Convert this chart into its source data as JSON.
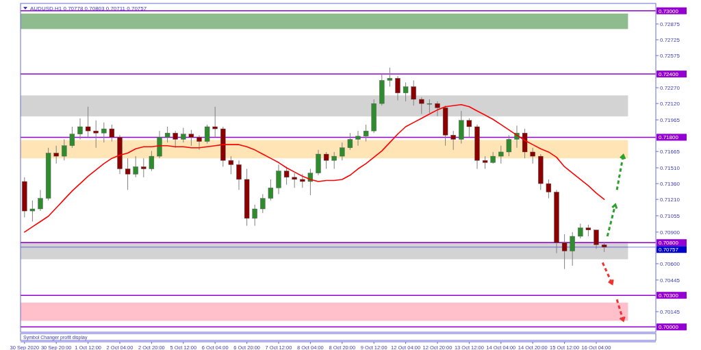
{
  "chart_data": {
    "type": "candlestick",
    "title": "AUDUSD.H1 0.70778 0.70803 0.70711 0.70757",
    "categories": [
      "30 Sep 2020",
      null,
      null,
      null,
      "30 Sep 20:00",
      null,
      null,
      null,
      "1 Oct 12:00",
      null,
      null,
      null,
      "2 Oct 04:00",
      null,
      null,
      null,
      "2 Oct 20:00",
      null,
      null,
      null,
      "5 Oct 12:00",
      null,
      null,
      null,
      "6 Oct 04:00",
      null,
      null,
      null,
      "6 Oct 20:00",
      null,
      null,
      null,
      "7 Oct 12:00",
      null,
      null,
      null,
      "8 Oct 04:00",
      null,
      null,
      null,
      "8 Oct 20:00",
      null,
      null,
      null,
      "9 Oct 12:00",
      null,
      null,
      null,
      "12 Oct 04:00",
      null,
      null,
      null,
      "12 Oct 20:00",
      null,
      null,
      null,
      "13 Oct 12:00",
      null,
      null,
      null,
      "14 Oct 04:00",
      null,
      null,
      null,
      "14 Oct 20:00",
      null,
      null,
      null,
      "15 Oct 12:00",
      null,
      null,
      null,
      "16 Oct 04:00",
      null
    ],
    "ohlc": [
      [
        0.7138,
        0.7142,
        0.7104,
        0.711
      ],
      [
        0.711,
        0.712,
        0.71,
        0.7112
      ],
      [
        0.7112,
        0.713,
        0.711,
        0.7122
      ],
      [
        0.7122,
        0.717,
        0.712,
        0.7165
      ],
      [
        0.7165,
        0.7172,
        0.7155,
        0.7162
      ],
      [
        0.7162,
        0.7178,
        0.7158,
        0.7172
      ],
      [
        0.7172,
        0.719,
        0.717,
        0.7183
      ],
      [
        0.7183,
        0.7198,
        0.7178,
        0.719
      ],
      [
        0.719,
        0.7209,
        0.718,
        0.7186
      ],
      [
        0.7186,
        0.7196,
        0.717,
        0.7184
      ],
      [
        0.7184,
        0.7194,
        0.7175,
        0.7188
      ],
      [
        0.7188,
        0.7192,
        0.7176,
        0.718
      ],
      [
        0.718,
        0.7182,
        0.7145,
        0.715
      ],
      [
        0.715,
        0.716,
        0.713,
        0.7145
      ],
      [
        0.7145,
        0.7162,
        0.7142,
        0.7152
      ],
      [
        0.7152,
        0.716,
        0.7142,
        0.715
      ],
      [
        0.715,
        0.7167,
        0.7148,
        0.7162
      ],
      [
        0.7162,
        0.7186,
        0.716,
        0.718
      ],
      [
        0.718,
        0.719,
        0.7175,
        0.7184
      ],
      [
        0.7184,
        0.7186,
        0.717,
        0.7178
      ],
      [
        0.7178,
        0.7189,
        0.7175,
        0.7183
      ],
      [
        0.7183,
        0.7187,
        0.7172,
        0.718
      ],
      [
        0.718,
        0.7182,
        0.7168,
        0.7176
      ],
      [
        0.7176,
        0.7192,
        0.7174,
        0.719
      ],
      [
        0.719,
        0.7209,
        0.718,
        0.7188
      ],
      [
        0.7188,
        0.719,
        0.7152,
        0.7158
      ],
      [
        0.7158,
        0.7162,
        0.7145,
        0.7154
      ],
      [
        0.7154,
        0.7158,
        0.713,
        0.714
      ],
      [
        0.714,
        0.715,
        0.7096,
        0.7103
      ],
      [
        0.7103,
        0.7116,
        0.7096,
        0.7112
      ],
      [
        0.7112,
        0.7126,
        0.7108,
        0.7122
      ],
      [
        0.7122,
        0.714,
        0.712,
        0.7132
      ],
      [
        0.7132,
        0.7154,
        0.7126,
        0.7148
      ],
      [
        0.7148,
        0.7152,
        0.7135,
        0.7142
      ],
      [
        0.7142,
        0.7146,
        0.7132,
        0.714
      ],
      [
        0.714,
        0.7145,
        0.7132,
        0.7138
      ],
      [
        0.7138,
        0.715,
        0.7125,
        0.7146
      ],
      [
        0.7146,
        0.7168,
        0.7144,
        0.7164
      ],
      [
        0.7164,
        0.7166,
        0.715,
        0.7158
      ],
      [
        0.7158,
        0.7166,
        0.715,
        0.7162
      ],
      [
        0.7162,
        0.7175,
        0.7158,
        0.717
      ],
      [
        0.717,
        0.7184,
        0.7168,
        0.7178
      ],
      [
        0.7178,
        0.7186,
        0.7172,
        0.7181
      ],
      [
        0.7181,
        0.7192,
        0.7176,
        0.7186
      ],
      [
        0.7186,
        0.7216,
        0.7184,
        0.7212
      ],
      [
        0.7212,
        0.724,
        0.721,
        0.7234
      ],
      [
        0.7234,
        0.7246,
        0.7228,
        0.7236
      ],
      [
        0.7236,
        0.7238,
        0.7215,
        0.7222
      ],
      [
        0.7222,
        0.7232,
        0.7214,
        0.7228
      ],
      [
        0.7228,
        0.7234,
        0.721,
        0.7216
      ],
      [
        0.7216,
        0.7218,
        0.7202,
        0.7212
      ],
      [
        0.7212,
        0.7216,
        0.7203,
        0.7212
      ],
      [
        0.7212,
        0.7214,
        0.72,
        0.7208
      ],
      [
        0.7208,
        0.721,
        0.7172,
        0.7182
      ],
      [
        0.7182,
        0.7186,
        0.7168,
        0.7178
      ],
      [
        0.7178,
        0.7205,
        0.7174,
        0.7196
      ],
      [
        0.7196,
        0.7198,
        0.718,
        0.719
      ],
      [
        0.719,
        0.7192,
        0.715,
        0.7158
      ],
      [
        0.7158,
        0.7162,
        0.715,
        0.7156
      ],
      [
        0.7156,
        0.7166,
        0.7155,
        0.7162
      ],
      [
        0.7162,
        0.7172,
        0.7155,
        0.7166
      ],
      [
        0.7166,
        0.7182,
        0.7162,
        0.7178
      ],
      [
        0.7178,
        0.7191,
        0.717,
        0.7184
      ],
      [
        0.7184,
        0.7188,
        0.716,
        0.7166
      ],
      [
        0.7166,
        0.717,
        0.7155,
        0.7162
      ],
      [
        0.7162,
        0.7164,
        0.713,
        0.7136
      ],
      [
        0.7136,
        0.714,
        0.7122,
        0.7128
      ],
      [
        0.7128,
        0.713,
        0.707,
        0.708
      ],
      [
        0.708,
        0.7088,
        0.7055,
        0.7072
      ],
      [
        0.7072,
        0.709,
        0.7058,
        0.7086
      ],
      [
        0.7086,
        0.7098,
        0.7084,
        0.7094
      ],
      [
        0.7094,
        0.7097,
        0.7086,
        0.7092
      ],
      [
        0.7092,
        0.7092,
        0.7074,
        0.7078
      ],
      [
        0.7078,
        0.70803,
        0.70711,
        0.70757
      ]
    ],
    "colors": [
      "#8b0000",
      "#2e8b2e",
      "#2e8b2e",
      "#2e8b2e",
      "#8b0000",
      "#2e8b2e",
      "#2e8b2e",
      "#2e8b2e",
      "#8b0000",
      "#8b0000",
      "#2e8b2e",
      "#8b0000",
      "#8b0000",
      "#8b0000",
      "#2e8b2e",
      "#8b0000",
      "#2e8b2e",
      "#2e8b2e",
      "#2e8b2e",
      "#8b0000",
      "#2e8b2e",
      "#8b0000",
      "#8b0000",
      "#2e8b2e",
      "#8b0000",
      "#8b0000",
      "#8b0000",
      "#8b0000",
      "#8b0000",
      "#2e8b2e",
      "#2e8b2e",
      "#2e8b2e",
      "#2e8b2e",
      "#8b0000",
      "#8b0000",
      "#8b0000",
      "#2e8b2e",
      "#2e8b2e",
      "#8b0000",
      "#2e8b2e",
      "#2e8b2e",
      "#2e8b2e",
      "#2e8b2e",
      "#2e8b2e",
      "#2e8b2e",
      "#2e8b2e",
      "#2e8b2e",
      "#8b0000",
      "#2e8b2e",
      "#8b0000",
      "#8b0000",
      "#2e8b2e",
      "#8b0000",
      "#8b0000",
      "#8b0000",
      "#2e8b2e",
      "#8b0000",
      "#8b0000",
      "#8b0000",
      "#2e8b2e",
      "#2e8b2e",
      "#2e8b2e",
      "#2e8b2e",
      "#8b0000",
      "#8b0000",
      "#8b0000",
      "#8b0000",
      "#8b0000",
      "#8b0000",
      "#2e8b2e",
      "#2e8b2e",
      "#8b0000",
      "#8b0000",
      "#8b0000"
    ],
    "series": [
      {
        "type": "line",
        "color": "#ff0000",
        "values": [
          0.709,
          0.7095,
          0.71,
          0.7105,
          0.7113,
          0.7121,
          0.7129,
          0.7136,
          0.7143,
          0.7149,
          0.7155,
          0.716,
          0.7163,
          0.7165,
          0.7169,
          0.7171,
          0.7171,
          0.7172,
          0.7172,
          0.7171,
          0.7171,
          0.717,
          0.717,
          0.7171,
          0.7172,
          0.7173,
          0.7173,
          0.7173,
          0.7171,
          0.7168,
          0.7164,
          0.716,
          0.7156,
          0.7151,
          0.7147,
          0.7143,
          0.714,
          0.7138,
          0.7139,
          0.7139,
          0.714,
          0.7144,
          0.715,
          0.7155,
          0.7161,
          0.7167,
          0.7175,
          0.7183,
          0.719,
          0.7194,
          0.7198,
          0.7202,
          0.7206,
          0.7209,
          0.721,
          0.7211,
          0.7209,
          0.7205,
          0.7201,
          0.7197,
          0.7192,
          0.7187,
          0.7182,
          0.7177,
          0.7173,
          0.7169,
          0.7166,
          0.7161,
          0.7152,
          0.7146,
          0.714,
          0.7134,
          0.7127,
          0.7121
        ]
      }
    ],
    "ylim": [
      0.6995,
      0.7307
    ],
    "yticks": [
      {
        "value": 0.72875,
        "label": "0.72875"
      },
      {
        "value": 0.72725,
        "label": "0.72725"
      },
      {
        "value": 0.72575,
        "label": "0.72575"
      },
      {
        "value": 0.7227,
        "label": "0.72270"
      },
      {
        "value": 0.7212,
        "label": "0.72120"
      },
      {
        "value": 0.71965,
        "label": "0.71965"
      },
      {
        "value": 0.71665,
        "label": "0.71665"
      },
      {
        "value": 0.7151,
        "label": "0.71510"
      },
      {
        "value": 0.7136,
        "label": "0.71360"
      },
      {
        "value": 0.7121,
        "label": "0.71210"
      },
      {
        "value": 0.71055,
        "label": "0.71055"
      },
      {
        "value": 0.709,
        "label": "0.70900"
      },
      {
        "value": 0.706,
        "label": "0.70600"
      },
      {
        "value": 0.70445,
        "label": "0.70445"
      },
      {
        "value": 0.70145,
        "label": "0.70145"
      }
    ],
    "ref_lines": [
      {
        "axis": "y",
        "value": 0.73,
        "label": "0.73000",
        "color": "#9400d3"
      },
      {
        "axis": "y",
        "value": 0.724,
        "label": "0.72400",
        "color": "#9400d3"
      },
      {
        "axis": "y",
        "value": 0.718,
        "label": "0.71800",
        "color": "#9400d3"
      },
      {
        "axis": "y",
        "value": 0.708,
        "label": "0.70800",
        "color": "#9400d3"
      },
      {
        "axis": "y",
        "value": 0.703,
        "label": "0.70300",
        "color": "#9400d3"
      },
      {
        "axis": "y",
        "value": 0.7,
        "label": "0.70000",
        "color": "#9400d3"
      },
      {
        "axis": "y",
        "value": 0.70757,
        "label": "0.70757",
        "color": "#0000cd"
      }
    ],
    "bands": [
      {
        "axis": "y",
        "from": 0.72827,
        "to": 0.72974,
        "color": "#8fbc8f"
      },
      {
        "axis": "y",
        "from": 0.71998,
        "to": 0.72197,
        "color": "#d3d3d3"
      },
      {
        "axis": "y",
        "from": 0.716,
        "to": 0.71773,
        "color": "#ffe4b5"
      },
      {
        "axis": "y",
        "from": 0.70642,
        "to": 0.70809,
        "color": "#d3d3d3"
      },
      {
        "axis": "y",
        "from": 0.70058,
        "to": 0.70231,
        "color": "#ffc0cb"
      }
    ],
    "annotations": [
      "Symbol Changer profit display"
    ],
    "grid": false
  }
}
